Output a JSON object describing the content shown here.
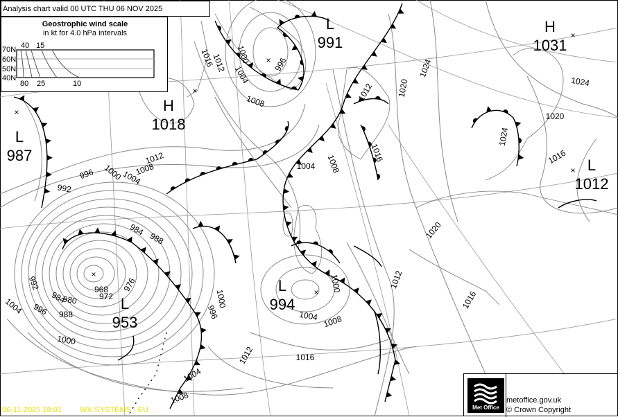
{
  "header": {
    "title": "Analysis chart valid 00 UTC THU 06  NOV 2025"
  },
  "wind_scale": {
    "title": "Geostrophic wind scale",
    "subtitle": "in kt for 4.0 hPa intervals",
    "latitudes": [
      "70N",
      "60N",
      "50N",
      "40N"
    ],
    "top_labels": [
      "40",
      "15"
    ],
    "bottom_labels": [
      "80",
      "25",
      "10"
    ]
  },
  "pressure_centres": [
    {
      "type": "L",
      "value": "987"
    },
    {
      "type": "H",
      "value": "1018"
    },
    {
      "type": "L",
      "value": "991"
    },
    {
      "type": "H",
      "value": "1031"
    },
    {
      "type": "L",
      "value": "1012"
    },
    {
      "type": "L",
      "value": "953"
    },
    {
      "type": "L",
      "value": "994"
    }
  ],
  "isobar_labels": [
    "1016",
    "1012",
    "1000",
    "1004",
    "996",
    "1008",
    "1020",
    "1024",
    "1024",
    "1020",
    "1016",
    "1024",
    "1016",
    "1008",
    "1004",
    "1012",
    "1008",
    "1004",
    "1000",
    "996",
    "992",
    "984",
    "988",
    "976",
    "968",
    "972",
    "992",
    "984",
    "980",
    "988",
    "996",
    "1004",
    "1000",
    "996",
    "1000",
    "1000",
    "1004",
    "1008",
    "1012",
    "1016",
    "1020",
    "1016",
    "1012",
    "1004",
    "1008",
    "1012"
  ],
  "footer": {
    "timestamp": "06-11-2025  18:01",
    "system": "WX-SYSTEMS - EU",
    "logo_text": "Met Office",
    "website": "metoffice.gov.uk",
    "copyright": "© Crown Copyright"
  },
  "colors": {
    "isobar": "#888888",
    "front": "#000000",
    "stamp": "#e8e000"
  }
}
